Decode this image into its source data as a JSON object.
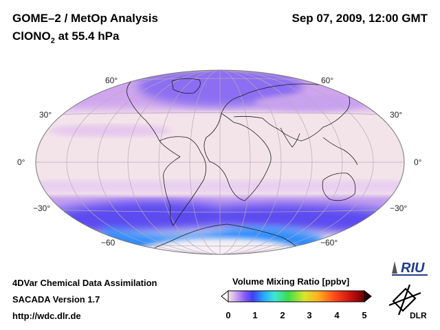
{
  "header": {
    "title": "GOME–2 / MetOp Analysis",
    "species_prefix": "ClONO",
    "species_sub": "2",
    "species_suffix": " at 55.4 hPa",
    "datetime": "Sep 07, 2009, 12:00 GMT"
  },
  "map": {
    "projection": "Hammer-Aitoff",
    "lat_labels_left": [
      "60°",
      "30°",
      "0°",
      "−30°",
      "−60"
    ],
    "lat_labels_right": [
      "60°",
      "30°",
      "0°",
      "−30°",
      "−60°"
    ]
  },
  "colorbar": {
    "label": "Volume Mixing Ratio [ppbv]",
    "ticks": [
      "0",
      "1",
      "2",
      "3",
      "4",
      "5"
    ],
    "colors": [
      "#f4e6ec",
      "#c9a2ee",
      "#8a5cf6",
      "#3d3ff0",
      "#2aa7ff",
      "#3ee6d8",
      "#3ddc4a",
      "#d9e62a",
      "#ffb020",
      "#ff4a1a",
      "#c81010",
      "#6a0000"
    ]
  },
  "footer": {
    "line1": "4DVar Chemical Data Assimilation",
    "line2": "SACADA Version 1.7",
    "line3": "http://wdc.dlr.de"
  },
  "logos": {
    "riu": "RIU",
    "dlr": "DLR"
  }
}
